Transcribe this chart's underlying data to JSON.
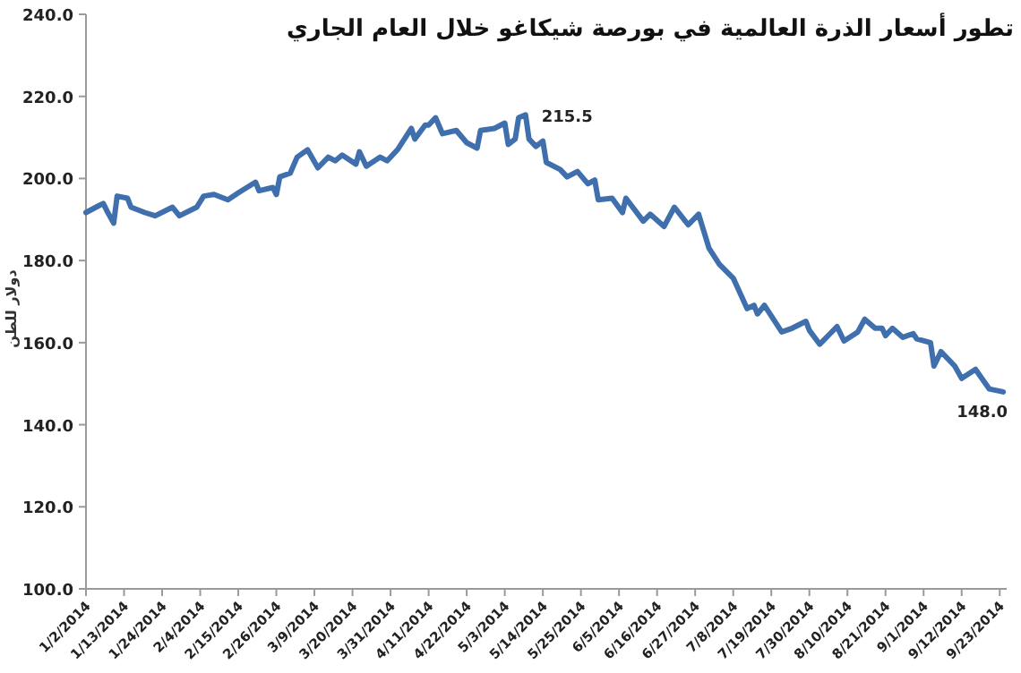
{
  "chart_data": {
    "type": "line",
    "title": "تطور أسعار الذرة العالمية في بورصة شيكاغو خلال العام الجاري",
    "ylabel": "دولار للطن",
    "x": [
      "2014-01-02",
      "2014-01-06",
      "2014-01-07",
      "2014-01-08",
      "2014-01-10",
      "2014-01-11",
      "2014-01-14",
      "2014-01-15",
      "2014-01-19",
      "2014-01-22",
      "2014-01-27",
      "2014-01-29",
      "2014-02-03",
      "2014-02-05",
      "2014-02-08",
      "2014-02-12",
      "2014-02-15",
      "2014-02-20",
      "2014-02-21",
      "2014-02-25",
      "2014-02-26",
      "2014-02-27",
      "2014-03-02",
      "2014-03-04",
      "2014-03-07",
      "2014-03-10",
      "2014-03-13",
      "2014-03-15",
      "2014-03-17",
      "2014-03-21",
      "2014-03-22",
      "2014-03-24",
      "2014-03-28",
      "2014-03-30",
      "2014-04-02",
      "2014-04-06",
      "2014-04-07",
      "2014-04-10",
      "2014-04-11",
      "2014-04-13",
      "2014-04-15",
      "2014-04-19",
      "2014-04-22",
      "2014-04-25",
      "2014-04-26",
      "2014-04-30",
      "2014-05-03",
      "2014-05-04",
      "2014-05-06",
      "2014-05-07",
      "2014-05-09",
      "2014-05-10",
      "2014-05-12",
      "2014-05-14",
      "2014-05-15",
      "2014-05-19",
      "2014-05-21",
      "2014-05-24",
      "2014-05-27",
      "2014-05-29",
      "2014-05-30",
      "2014-06-03",
      "2014-06-06",
      "2014-06-07",
      "2014-06-12",
      "2014-06-14",
      "2014-06-18",
      "2014-06-21",
      "2014-06-25",
      "2014-06-28",
      "2014-07-01",
      "2014-07-04",
      "2014-07-08",
      "2014-07-12",
      "2014-07-14",
      "2014-07-15",
      "2014-07-17",
      "2014-07-22",
      "2014-07-25",
      "2014-07-29",
      "2014-07-30",
      "2014-08-02",
      "2014-08-05",
      "2014-08-07",
      "2014-08-09",
      "2014-08-13",
      "2014-08-15",
      "2014-08-18",
      "2014-08-20",
      "2014-08-21",
      "2014-08-23",
      "2014-08-26",
      "2014-08-29",
      "2014-08-30",
      "2014-09-03",
      "2014-09-04",
      "2014-09-06",
      "2014-09-10",
      "2014-09-12",
      "2014-09-16",
      "2014-09-20",
      "2014-09-24"
    ],
    "series": [
      {
        "color": "#3f6fad",
        "values": [
          191.7,
          193.5,
          193.9,
          192.2,
          189.1,
          195.7,
          195.2,
          193.0,
          191.7,
          190.9,
          193.0,
          190.9,
          193.0,
          195.7,
          196.1,
          194.8,
          196.5,
          199.1,
          197.0,
          197.8,
          196.1,
          200.4,
          201.3,
          205.2,
          207.0,
          202.6,
          205.2,
          204.3,
          205.7,
          203.5,
          206.5,
          203.0,
          205.2,
          204.3,
          207.0,
          212.2,
          209.6,
          213.0,
          213.0,
          214.8,
          210.9,
          211.7,
          208.7,
          207.4,
          211.7,
          212.2,
          213.5,
          208.3,
          209.6,
          214.8,
          215.5,
          209.6,
          207.8,
          209.1,
          203.9,
          202.2,
          200.4,
          201.7,
          198.7,
          199.6,
          194.8,
          195.2,
          191.7,
          195.2,
          189.6,
          191.3,
          188.3,
          193.0,
          188.7,
          191.3,
          183.0,
          179.1,
          175.7,
          168.3,
          169.1,
          167.0,
          169.1,
          162.6,
          163.5,
          165.2,
          163.0,
          159.6,
          162.2,
          163.9,
          160.4,
          162.6,
          165.7,
          163.5,
          163.5,
          161.7,
          163.5,
          161.3,
          162.2,
          160.9,
          160.0,
          154.3,
          157.8,
          154.3,
          151.3,
          153.5,
          148.7,
          148.0
        ]
      }
    ],
    "xlim": [
      "2014-01-02",
      "2014-09-25"
    ],
    "xticks": [
      {
        "value": "2014-01-02",
        "label": "1/2/2014"
      },
      {
        "value": "2014-01-13",
        "label": "1/13/2014"
      },
      {
        "value": "2014-01-24",
        "label": "1/24/2014"
      },
      {
        "value": "2014-02-04",
        "label": "2/4/2014"
      },
      {
        "value": "2014-02-15",
        "label": "2/15/2014"
      },
      {
        "value": "2014-02-26",
        "label": "2/26/2014"
      },
      {
        "value": "2014-03-09",
        "label": "3/9/2014"
      },
      {
        "value": "2014-03-20",
        "label": "3/20/2014"
      },
      {
        "value": "2014-03-31",
        "label": "3/31/2014"
      },
      {
        "value": "2014-04-11",
        "label": "4/11/2014"
      },
      {
        "value": "2014-04-22",
        "label": "4/22/2014"
      },
      {
        "value": "2014-05-03",
        "label": "5/3/2014"
      },
      {
        "value": "2014-05-14",
        "label": "5/14/2014"
      },
      {
        "value": "2014-05-25",
        "label": "5/25/2014"
      },
      {
        "value": "2014-06-05",
        "label": "6/5/2014"
      },
      {
        "value": "2014-06-16",
        "label": "6/16/2014"
      },
      {
        "value": "2014-06-27",
        "label": "6/27/2014"
      },
      {
        "value": "2014-07-08",
        "label": "7/8/2014"
      },
      {
        "value": "2014-07-19",
        "label": "7/19/2014"
      },
      {
        "value": "2014-07-30",
        "label": "7/30/2014"
      },
      {
        "value": "2014-08-10",
        "label": "8/10/2014"
      },
      {
        "value": "2014-08-21",
        "label": "8/21/2014"
      },
      {
        "value": "2014-09-01",
        "label": "9/1/2014"
      },
      {
        "value": "2014-09-12",
        "label": "9/12/2014"
      },
      {
        "value": "2014-09-23",
        "label": "9/23/2014"
      }
    ],
    "ylim": [
      100,
      240
    ],
    "yticks": [
      {
        "value": 100,
        "label": "100.0"
      },
      {
        "value": 120,
        "label": "120.0"
      },
      {
        "value": 140,
        "label": "140.0"
      },
      {
        "value": 160,
        "label": "160.0"
      },
      {
        "value": 180,
        "label": "180.0"
      },
      {
        "value": 200,
        "label": "200.0"
      },
      {
        "value": 220,
        "label": "220.0"
      },
      {
        "value": 240,
        "label": "240.0"
      }
    ],
    "annotations": [
      {
        "text": "215.5",
        "x": "2014-05-09",
        "y": 215.5
      },
      {
        "text": "148.0",
        "x": "2014-09-24",
        "y": 148.0
      }
    ],
    "grid": false,
    "marker": "none",
    "line_style": "solid"
  }
}
